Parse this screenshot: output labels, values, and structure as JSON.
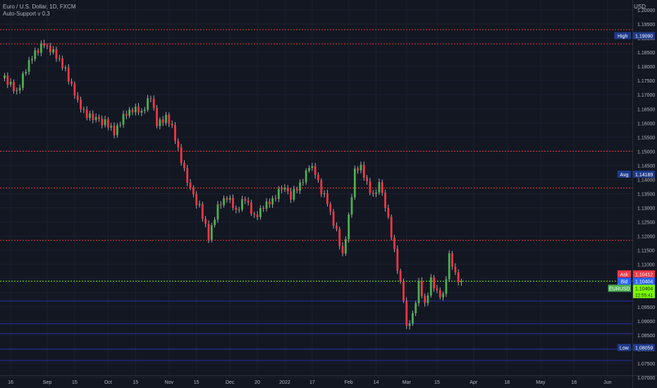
{
  "header": {
    "title": "Euro / U.S. Dollar, 1D, FXCM",
    "indicator": "Auto-Support v 0.3",
    "currency": "USD"
  },
  "chart_data": {
    "type": "candlestick",
    "symbol": "EURUSD",
    "ylim": [
      1.07,
      1.2
    ],
    "y_ticks": [
      "1.20000",
      "1.19500",
      "1.19000",
      "1.18500",
      "1.18000",
      "1.17500",
      "1.17000",
      "1.16500",
      "1.16000",
      "1.15500",
      "1.15000",
      "1.14500",
      "1.14000",
      "1.13500",
      "1.13000",
      "1.12500",
      "1.12000",
      "1.11500",
      "1.11000",
      "1.10500",
      "1.10000",
      "1.09500",
      "1.09000",
      "1.08500",
      "1.08000",
      "1.07500",
      "1.07000"
    ],
    "x_labels": [
      {
        "i": -10,
        "label": "16"
      },
      {
        "i": 2,
        "label": "Sep"
      },
      {
        "i": 11,
        "label": "15"
      },
      {
        "i": 22,
        "label": "Oct"
      },
      {
        "i": 31,
        "label": "15"
      },
      {
        "i": 42,
        "label": "Nov"
      },
      {
        "i": 51,
        "label": "15"
      },
      {
        "i": 62,
        "label": "Dec"
      },
      {
        "i": 71,
        "label": "20"
      },
      {
        "i": 80,
        "label": "2022"
      },
      {
        "i": 89,
        "label": "17"
      },
      {
        "i": 101,
        "label": "Feb"
      },
      {
        "i": 110,
        "label": "14"
      },
      {
        "i": 120,
        "label": "Mar"
      },
      {
        "i": 130,
        "label": "15"
      },
      {
        "i": 142,
        "label": "Apr"
      },
      {
        "i": 153,
        "label": "18"
      },
      {
        "i": 164,
        "label": "May"
      },
      {
        "i": 175,
        "label": "16"
      },
      {
        "i": 186,
        "label": "Jun"
      }
    ],
    "grid": true,
    "up_color": "#4caf50",
    "down_color": "#f23645",
    "resistance_color": "#e53935",
    "support_color": "#2a2ea8",
    "current_line_color": "#7cfc00",
    "resistance_levels": [
      1.193,
      1.188,
      1.15,
      1.137,
      1.1185
    ],
    "support_levels": [
      1.097,
      1.089,
      1.0855,
      1.08,
      1.076
    ],
    "current_price": 1.10404,
    "anchor_closes": [
      [
        -12,
        1.176
      ],
      [
        -8,
        1.1705
      ],
      [
        -6,
        1.177
      ],
      [
        -2,
        1.185
      ],
      [
        1,
        1.188
      ],
      [
        3,
        1.186
      ],
      [
        6,
        1.182
      ],
      [
        8,
        1.179
      ],
      [
        10,
        1.173
      ],
      [
        12,
        1.167
      ],
      [
        15,
        1.163
      ],
      [
        18,
        1.161
      ],
      [
        21,
        1.16
      ],
      [
        24,
        1.157
      ],
      [
        27,
        1.162
      ],
      [
        30,
        1.165
      ],
      [
        33,
        1.164
      ],
      [
        36,
        1.169
      ],
      [
        38,
        1.16
      ],
      [
        41,
        1.162
      ],
      [
        43,
        1.158
      ],
      [
        45,
        1.151
      ],
      [
        47,
        1.143
      ],
      [
        49,
        1.136
      ],
      [
        52,
        1.13
      ],
      [
        55,
        1.12
      ],
      [
        58,
        1.13
      ],
      [
        61,
        1.134
      ],
      [
        64,
        1.129
      ],
      [
        67,
        1.133
      ],
      [
        70,
        1.127
      ],
      [
        73,
        1.13
      ],
      [
        76,
        1.133
      ],
      [
        79,
        1.137
      ],
      [
        82,
        1.134
      ],
      [
        85,
        1.138
      ],
      [
        88,
        1.145
      ],
      [
        90,
        1.142
      ],
      [
        92,
        1.136
      ],
      [
        94,
        1.132
      ],
      [
        97,
        1.121
      ],
      [
        99,
        1.113
      ],
      [
        101,
        1.127
      ],
      [
        103,
        1.143
      ],
      [
        105,
        1.144
      ],
      [
        107,
        1.139
      ],
      [
        109,
        1.134
      ],
      [
        111,
        1.138
      ],
      [
        113,
        1.131
      ],
      [
        115,
        1.12
      ],
      [
        117,
        1.109
      ],
      [
        119,
        1.098
      ],
      [
        120,
        1.087
      ],
      [
        122,
        1.092
      ],
      [
        124,
        1.103
      ],
      [
        126,
        1.096
      ],
      [
        128,
        1.104
      ],
      [
        130,
        1.1
      ],
      [
        132,
        1.099
      ],
      [
        134,
        1.113
      ],
      [
        136,
        1.106
      ],
      [
        137,
        1.1045
      ],
      [
        138,
        1.10404
      ]
    ],
    "noise": [
      0.0008,
      -0.0011,
      0.0013,
      -0.0006,
      0.001,
      -0.0013,
      0.0005,
      -0.0009,
      0.0012,
      -0.0004,
      0.0007,
      -0.0012,
      0.0011,
      -0.0007,
      0.0003,
      -0.001,
      0.0014,
      -0.0005,
      0.0008,
      -0.0011,
      0.0006,
      -0.0013,
      0.0009,
      -0.0003,
      0.0012,
      -0.0008,
      0.0004,
      -0.0012,
      0.001,
      -0.0006,
      0.0011
    ],
    "labels": [
      {
        "name": "high-label",
        "tag": "High",
        "value": "1.19090",
        "price": 1.1909,
        "tag_bg": "#1e3a8a",
        "value_bg": "#1e3a8a",
        "color": "#ffffff"
      },
      {
        "name": "avg-label",
        "tag": "Avg",
        "value": "1.14189",
        "price": 1.14189,
        "tag_bg": "#1e3a8a",
        "value_bg": "#1e3a8a",
        "color": "#ffffff"
      },
      {
        "name": "ask-label",
        "tag": "Ask",
        "value": "1.10412",
        "price": 1.10412,
        "tag_bg": "#f23645",
        "value_bg": "#f23645",
        "color": "#ffffff",
        "offset": -10
      },
      {
        "name": "bid-label",
        "tag": "Bid",
        "value": "1.10404",
        "price": 1.10404,
        "tag_bg": "#2962ff",
        "value_bg": "#2962ff",
        "color": "#ffffff",
        "offset": 0
      },
      {
        "name": "symbol-label",
        "tag": "EURUSD",
        "value": "1.10404",
        "price": 1.10404,
        "tag_bg": "#4caf50",
        "value_bg": "#7cfc00",
        "color": "#131722",
        "offset": 10,
        "sub": "22:55:41"
      },
      {
        "name": "low-label",
        "tag": "Low",
        "value": "1.08059",
        "price": 1.08059,
        "tag_bg": "#1e3a8a",
        "value_bg": "#1e3a8a",
        "color": "#ffffff"
      }
    ]
  }
}
